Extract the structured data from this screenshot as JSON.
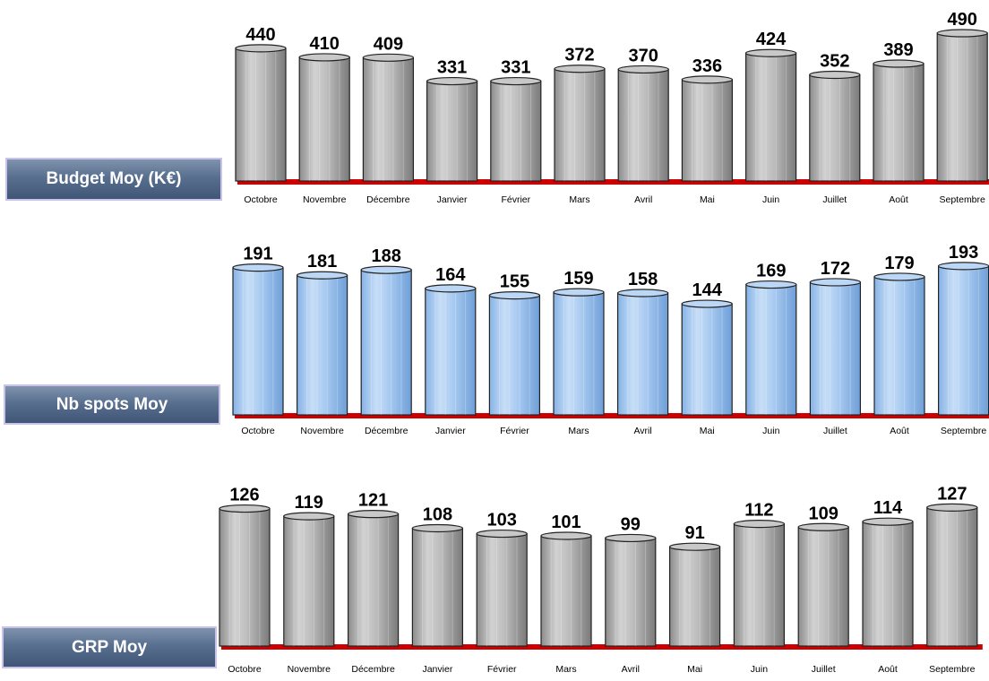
{
  "chart_data": [
    {
      "type": "bar",
      "title": "Budget Moy (K€)",
      "categories": [
        "Octobre",
        "Novembre",
        "Décembre",
        "Janvier",
        "Février",
        "Mars",
        "Avril",
        "Mai",
        "Juin",
        "Juillet",
        "Août",
        "Septembre"
      ],
      "values": [
        440,
        410,
        409,
        331,
        331,
        372,
        370,
        336,
        424,
        352,
        389,
        490
      ],
      "bar_color": "#b4b4b4",
      "baseline_color": "#cc0000"
    },
    {
      "type": "bar",
      "title": "Nb spots Moy",
      "categories": [
        "Octobre",
        "Novembre",
        "Décembre",
        "Janvier",
        "Février",
        "Mars",
        "Avril",
        "Mai",
        "Juin",
        "Juillet",
        "Août",
        "Septembre"
      ],
      "values": [
        191,
        181,
        188,
        164,
        155,
        159,
        158,
        144,
        169,
        172,
        179,
        193
      ],
      "bar_color": "#a6caf0",
      "baseline_color": "#cc0000"
    },
    {
      "type": "bar",
      "title": "GRP Moy",
      "categories": [
        "Octobre",
        "Novembre",
        "Décembre",
        "Janvier",
        "Février",
        "Mars",
        "Avril",
        "Mai",
        "Juin",
        "Juillet",
        "Août",
        "Septembre"
      ],
      "values": [
        126,
        119,
        121,
        108,
        103,
        101,
        99,
        91,
        112,
        109,
        114,
        127
      ],
      "bar_color": "#b4b4b4",
      "baseline_color": "#cc0000"
    }
  ]
}
